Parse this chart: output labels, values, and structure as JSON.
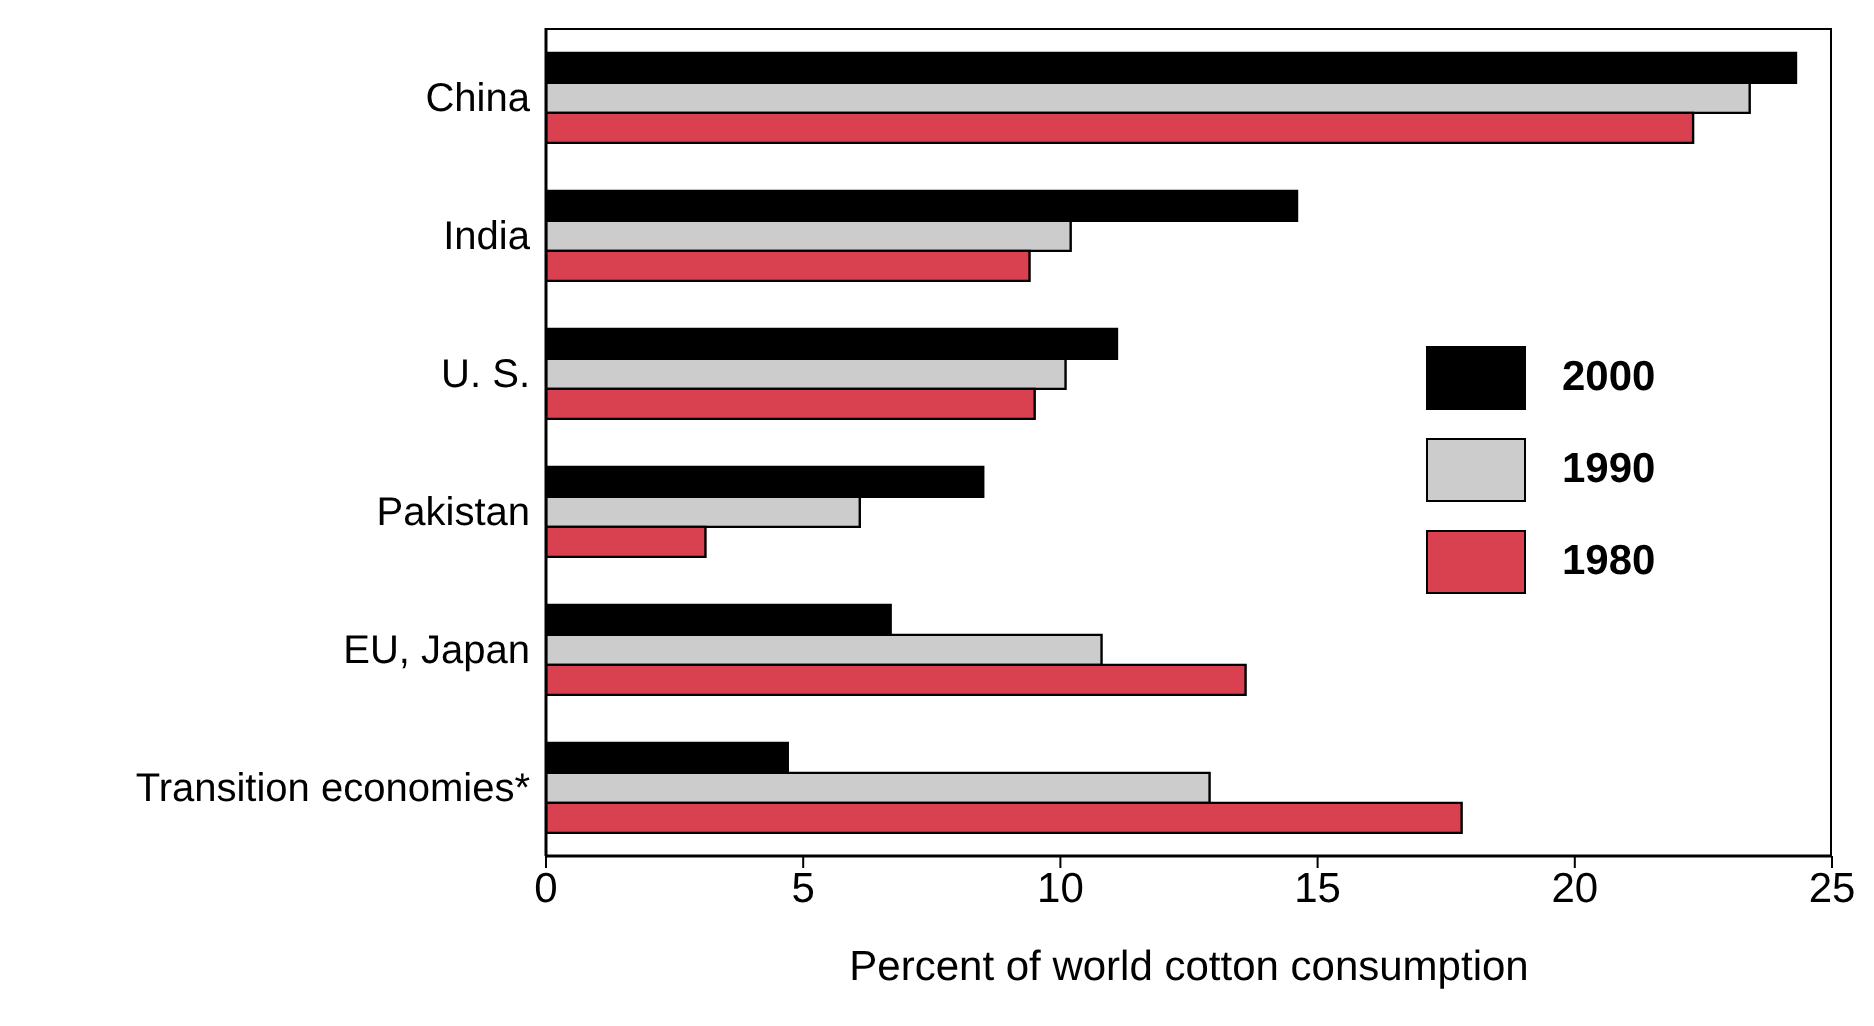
{
  "chart_data": {
    "type": "bar",
    "orientation": "horizontal",
    "xlabel": "Percent of world cotton consumption",
    "categories": [
      "China",
      "India",
      "U. S.",
      "Pakistan",
      "EU, Japan",
      "Transition economies*"
    ],
    "series": [
      {
        "name": "2000",
        "color": "#000000",
        "values": [
          24.3,
          14.6,
          11.1,
          8.5,
          6.7,
          4.7
        ]
      },
      {
        "name": "1990",
        "color": "#cccccc",
        "values": [
          23.4,
          10.2,
          10.1,
          6.1,
          10.8,
          12.9
        ]
      },
      {
        "name": "1980",
        "color": "#d94050",
        "values": [
          22.3,
          9.4,
          9.5,
          3.1,
          13.6,
          17.8
        ]
      }
    ],
    "xlim": [
      0,
      25
    ],
    "xticks": [
      0,
      5,
      10,
      15,
      20,
      25
    ],
    "legend": "right"
  }
}
